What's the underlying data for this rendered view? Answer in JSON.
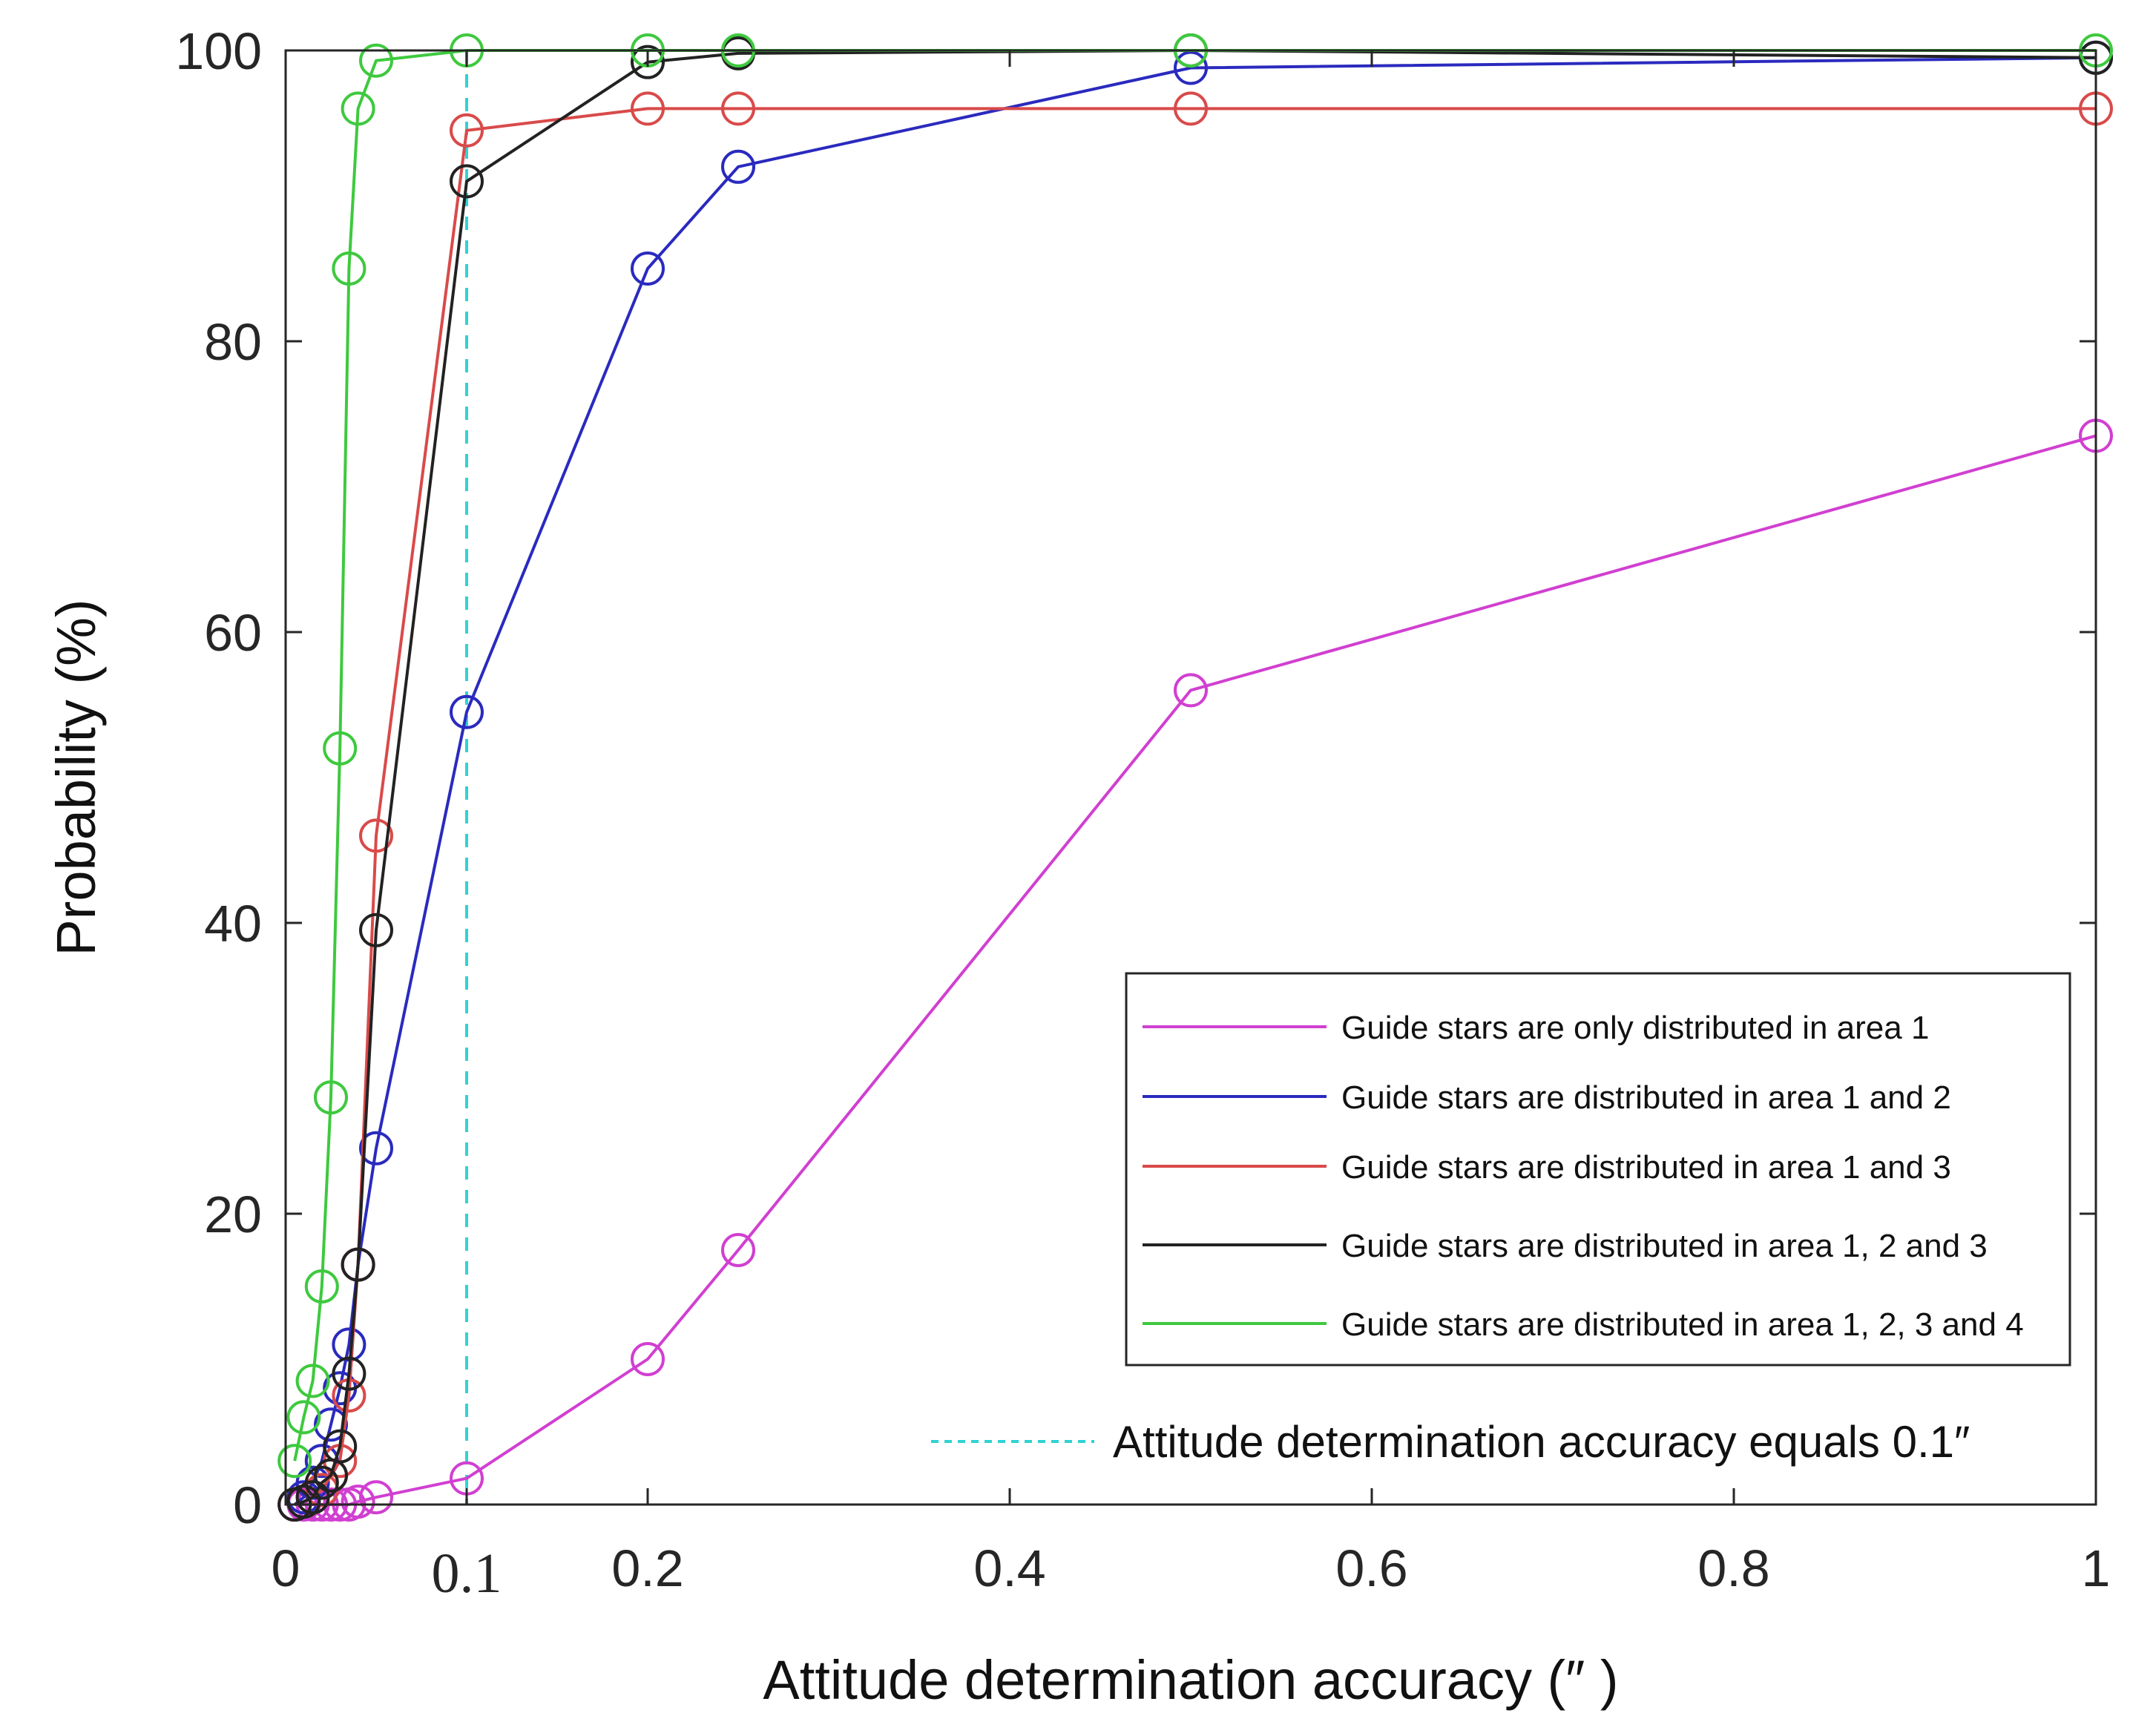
{
  "chart_data": {
    "type": "line",
    "xlabel": "Attitude determination accuracy (″ )",
    "ylabel": "Probability (%)",
    "xlim": [
      0,
      1
    ],
    "ylim": [
      0,
      100
    ],
    "x_ticks": [
      "0",
      "0.1",
      "0.2",
      "0.4",
      "0.6",
      "0.8",
      "1"
    ],
    "x_tick_values": [
      0,
      0.1,
      0.2,
      0.4,
      0.6,
      0.8,
      1
    ],
    "y_ticks": [
      "0",
      "20",
      "40",
      "60",
      "80",
      "100"
    ],
    "y_tick_values": [
      0,
      20,
      40,
      60,
      80,
      100
    ],
    "grid": false,
    "legend_position": "lower-right",
    "marker": "open-circle",
    "series": [
      {
        "name": "Guide stars are only distributed in area 1",
        "color": "#d13fd1",
        "x": [
          0.005,
          0.01,
          0.015,
          0.02,
          0.025,
          0.03,
          0.035,
          0.04,
          0.05,
          0.1,
          0.2,
          0.25,
          0.5,
          1
        ],
        "y": [
          0,
          0,
          0,
          0,
          0,
          0,
          0,
          0.2,
          0.5,
          1.8,
          10,
          17.5,
          56,
          73.5
        ]
      },
      {
        "name": "Guide stars are distributed in area 1 and 2",
        "color": "#2a2abf",
        "x": [
          0.005,
          0.01,
          0.015,
          0.02,
          0.025,
          0.03,
          0.035,
          0.04,
          0.05,
          0.1,
          0.2,
          0.25,
          0.5,
          1
        ],
        "y": [
          0,
          0.5,
          1.5,
          3,
          5.5,
          8,
          11,
          16.5,
          24.5,
          54.5,
          85,
          92,
          98.8,
          99.5
        ]
      },
      {
        "name": "Guide stars are distributed in area 1 and 3",
        "color": "#d94a4a",
        "x": [
          0.005,
          0.01,
          0.015,
          0.02,
          0.025,
          0.03,
          0.035,
          0.04,
          0.05,
          0.1,
          0.2,
          0.25,
          0.5,
          1
        ],
        "y": [
          0,
          0.2,
          0.5,
          1,
          2,
          3,
          7.5,
          16.5,
          46,
          94.5,
          96,
          96,
          96,
          96
        ]
      },
      {
        "name": "Guide stars are distributed in area 1, 2 and 3",
        "color": "#222222",
        "x": [
          0.005,
          0.01,
          0.015,
          0.02,
          0.025,
          0.03,
          0.035,
          0.04,
          0.05,
          0.1,
          0.2,
          0.25,
          0.5,
          1
        ],
        "y": [
          0,
          0.2,
          0.5,
          1.5,
          2,
          4,
          9,
          16.5,
          39.5,
          91,
          99.2,
          99.8,
          100,
          99.5
        ]
      },
      {
        "name": "Guide stars are distributed in area 1, 2, 3 and 4",
        "color": "#3ec93e",
        "x": [
          0.005,
          0.01,
          0.015,
          0.02,
          0.025,
          0.03,
          0.035,
          0.04,
          0.05,
          0.1,
          0.2,
          0.25,
          0.5,
          1
        ],
        "y": [
          3,
          6,
          8.5,
          15,
          28,
          52,
          85,
          96,
          99.3,
          100,
          100,
          100,
          100,
          100
        ]
      }
    ],
    "reference_line": {
      "x": 0.1,
      "label": "Attitude determination accuracy equals 0.1″",
      "color": "#2fd3d3",
      "style": "dashed"
    }
  }
}
